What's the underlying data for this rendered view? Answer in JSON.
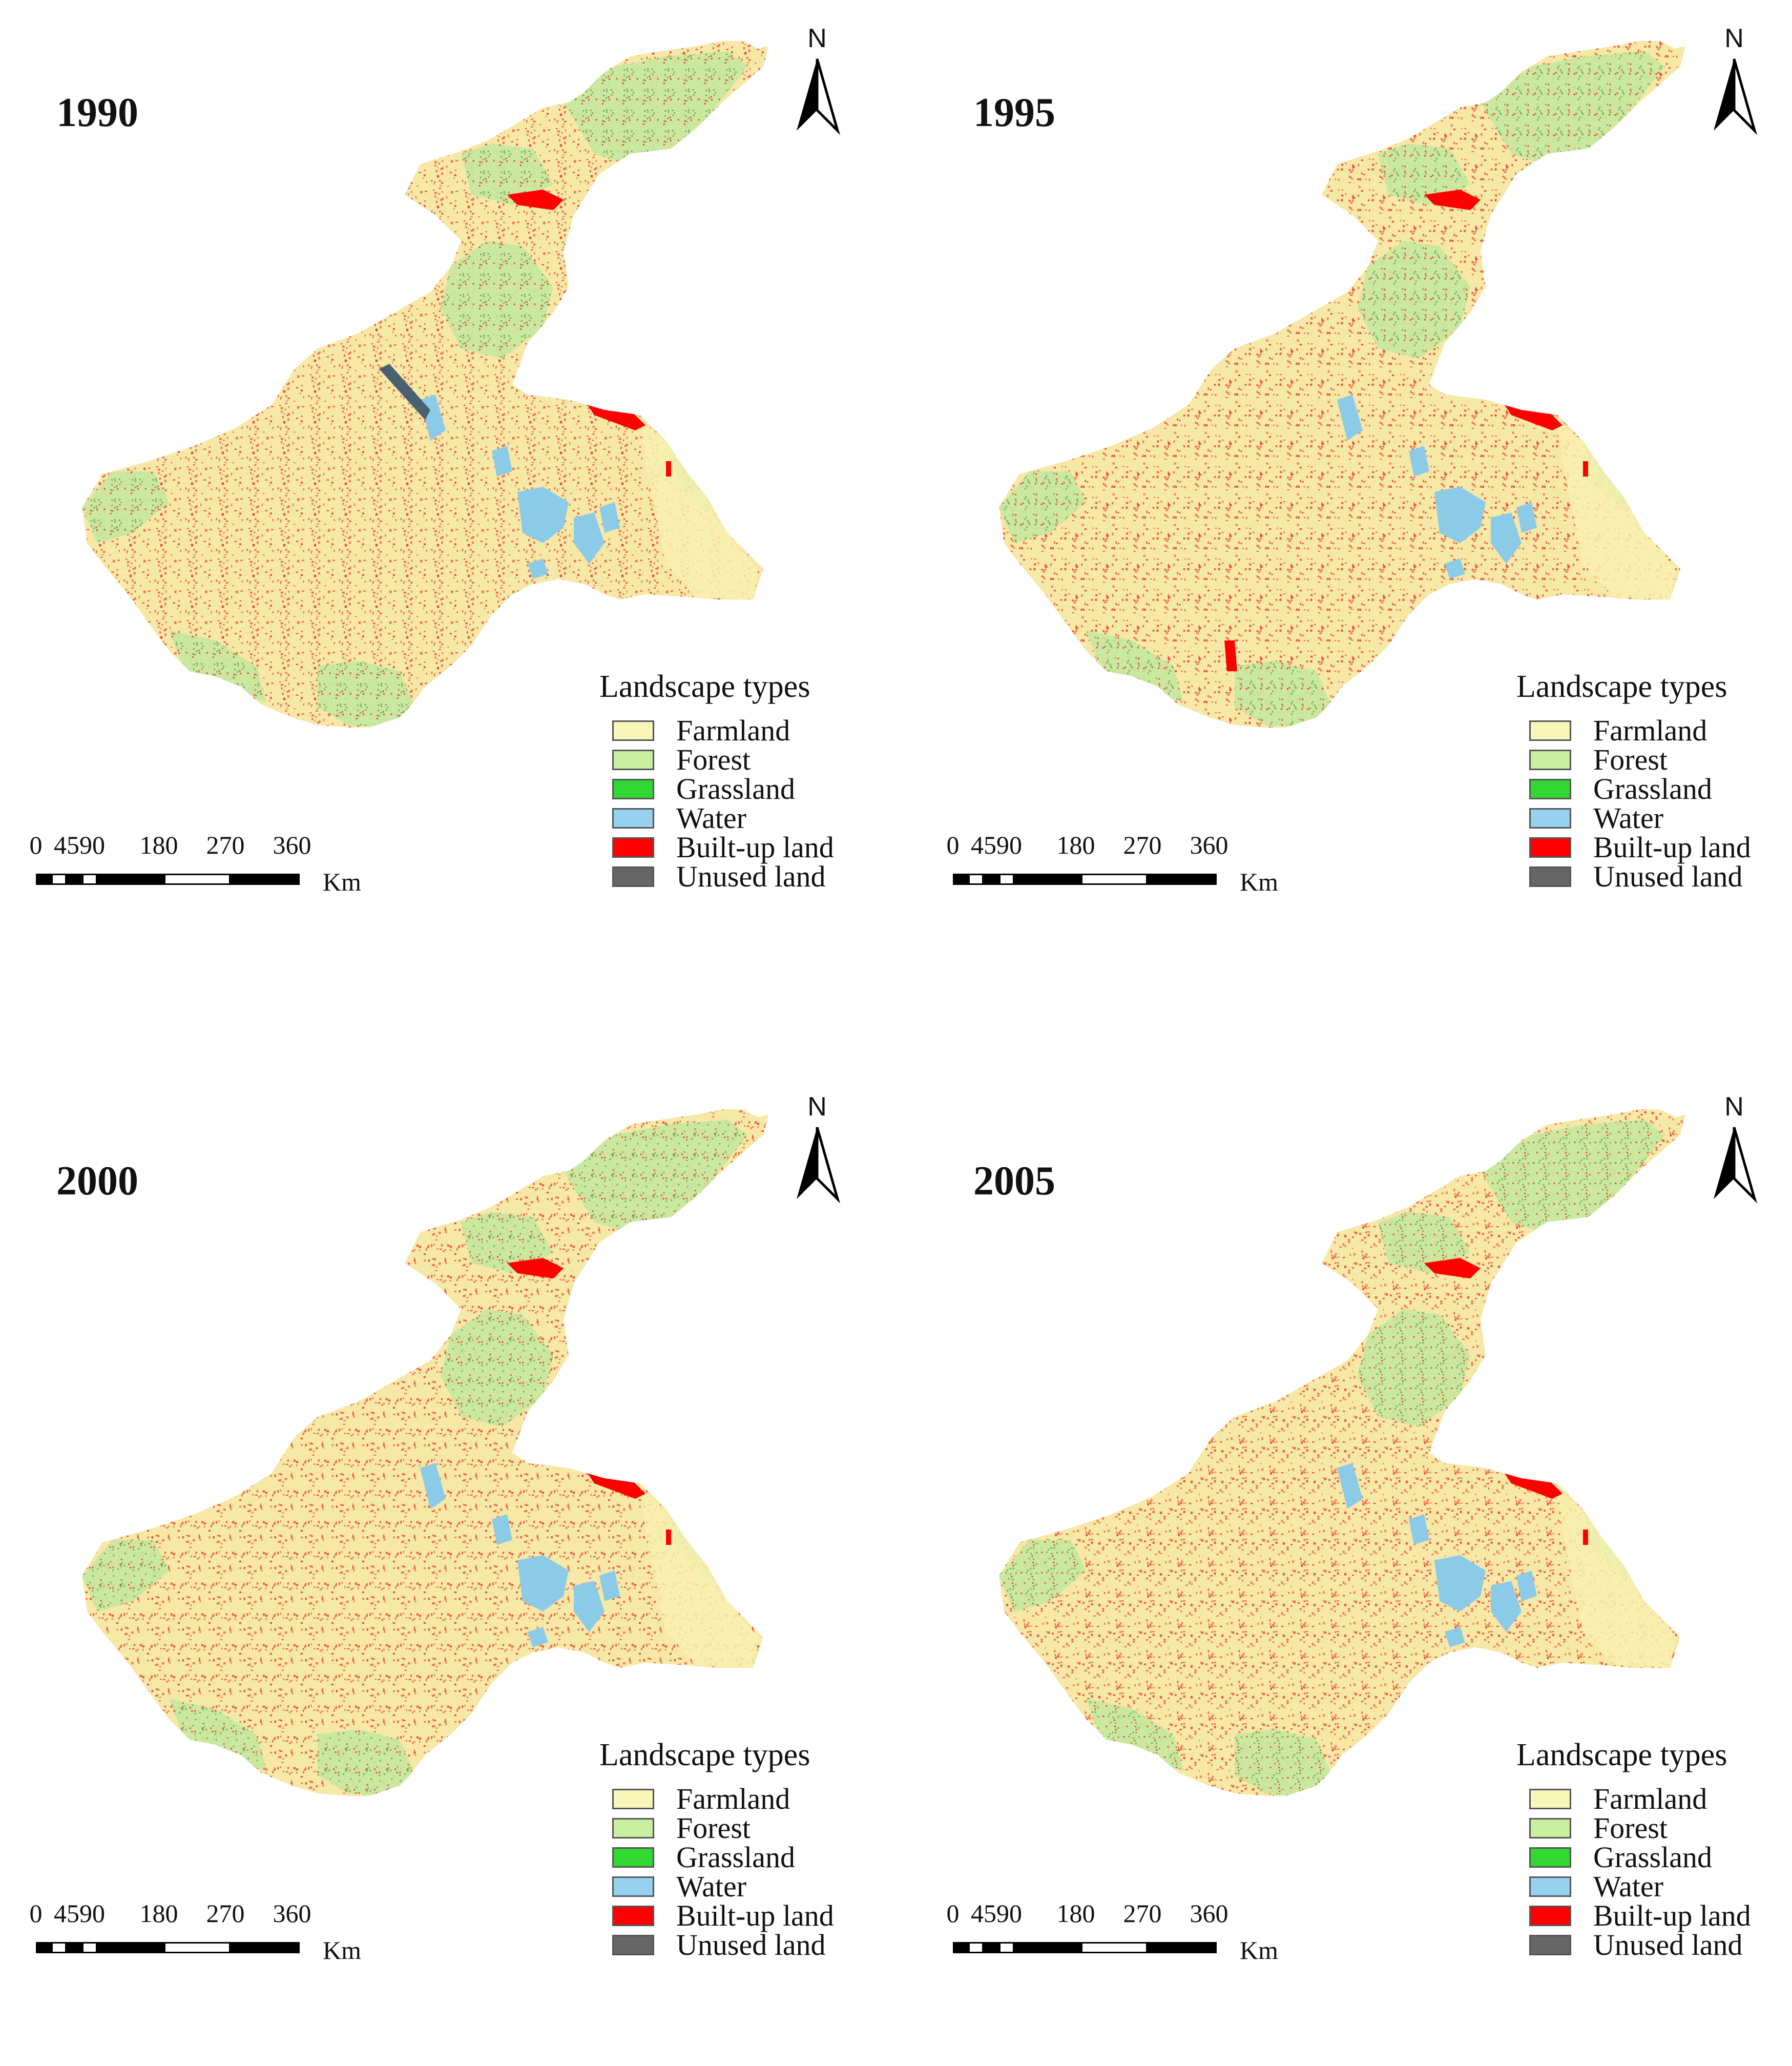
{
  "panels": [
    {
      "year": "1990"
    },
    {
      "year": "1995"
    },
    {
      "year": "2000"
    },
    {
      "year": "2005"
    }
  ],
  "north_label": "N",
  "legend": {
    "title": "Landscape types",
    "items": [
      {
        "label": "Farmland",
        "color": "#f9f6b9"
      },
      {
        "label": "Forest",
        "color": "#c8f0a0"
      },
      {
        "label": "Grassland",
        "color": "#32d832"
      },
      {
        "label": "Water",
        "color": "#96d2f0"
      },
      {
        "label": "Built-up land",
        "color": "#ff0000"
      },
      {
        "label": "Unused land",
        "color": "#666666"
      }
    ]
  },
  "scale_bar": {
    "ticks": [
      "0",
      "45",
      "90",
      "180",
      "270",
      "360"
    ],
    "unit": "Km"
  },
  "colors": {
    "farmland": "#f6e8a6",
    "builtup_speckle": "#ef3b2a",
    "forest": "#c6e8a0",
    "forest_dark": "#6fa85a",
    "water": "#8ccbe8",
    "builtup": "#ff0000",
    "unused": "#4a6270"
  }
}
